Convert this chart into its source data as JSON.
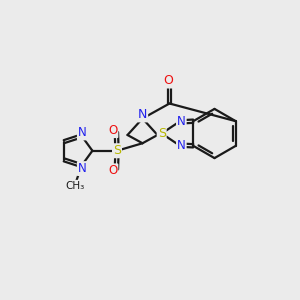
{
  "background_color": "#ebebeb",
  "bond_color": "#1a1a1a",
  "nitrogen_color": "#2020ee",
  "sulfur_color": "#b8b800",
  "oxygen_color": "#ee1010",
  "line_width": 1.6,
  "figsize": [
    3.0,
    3.0
  ],
  "dpi": 100,
  "xlim": [
    0,
    10
  ],
  "ylim": [
    0,
    10
  ]
}
